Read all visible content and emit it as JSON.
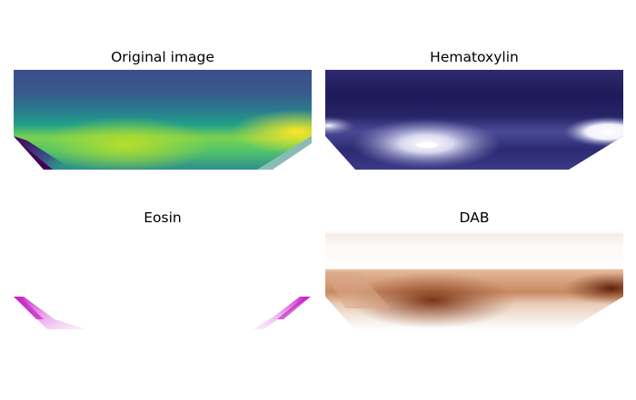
{
  "panels": [
    {
      "id": "original",
      "title": "Original image",
      "colormap": "viridis"
    },
    {
      "id": "hematoxylin",
      "title": "Hematoxylin",
      "colormap": "purple-white"
    },
    {
      "id": "eosin",
      "title": "Eosin",
      "colormap": "magenta"
    },
    {
      "id": "dab",
      "title": "DAB",
      "colormap": "brown"
    }
  ]
}
